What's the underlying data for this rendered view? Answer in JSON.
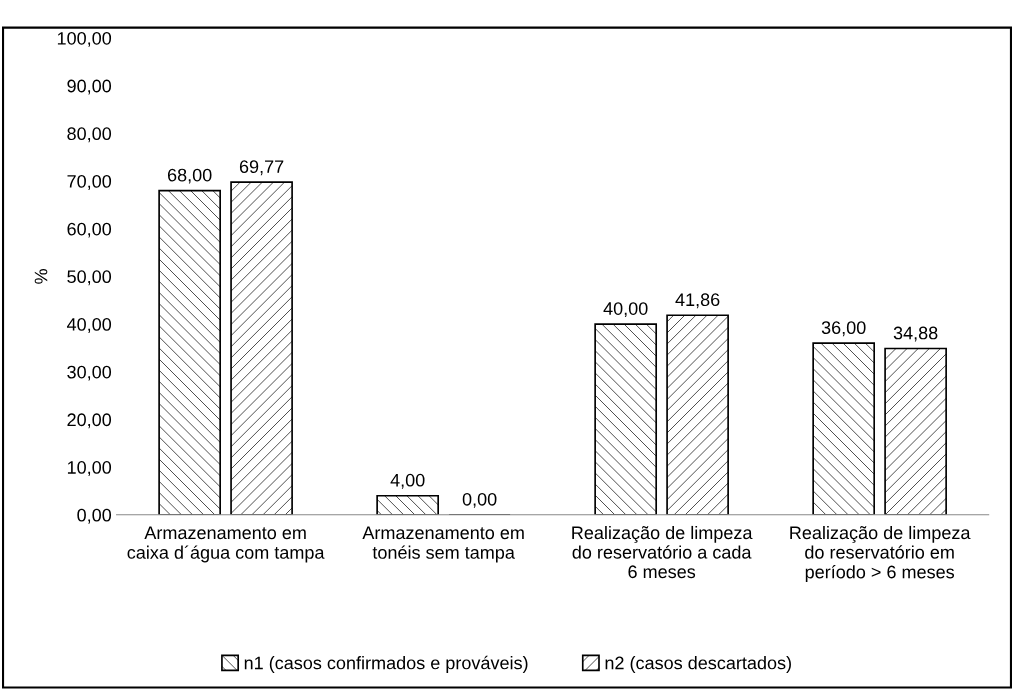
{
  "chart_data": {
    "type": "bar",
    "ylabel": "%",
    "categories": [
      "Armazenamento em\ncaixa d´água com tampa",
      "Armazenamento em\ntonéis sem tampa",
      "Realização de limpeza\ndo reservatório a cada\n6 meses",
      "Realização de limpeza\ndo reservatório em\nperíodo > 6 meses"
    ],
    "series": [
      {
        "name": "n1 (casos confirmados e prováveis)",
        "color": "#000000",
        "values": [
          68.0,
          4.0,
          40.0,
          36.0
        ],
        "value_labels": [
          "68,00",
          "4,00",
          "40,00",
          "36,00"
        ]
      },
      {
        "name": "n2 (casos descartados)",
        "color": "#000000",
        "values": [
          69.77,
          0.0,
          41.86,
          34.88
        ],
        "value_labels": [
          "69,77",
          "0,00",
          "41,86",
          "34,88"
        ]
      }
    ],
    "ylim": [
      0,
      100
    ],
    "yticks": [
      {
        "value": 0,
        "label": "0,00"
      },
      {
        "value": 10,
        "label": "10,00"
      },
      {
        "value": 20,
        "label": "20,00"
      },
      {
        "value": 30,
        "label": "30,00"
      },
      {
        "value": 40,
        "label": "40,00"
      },
      {
        "value": 50,
        "label": "50,00"
      },
      {
        "value": 60,
        "label": "60,00"
      },
      {
        "value": 70,
        "label": "70,00"
      },
      {
        "value": 80,
        "label": "80,00"
      },
      {
        "value": 90,
        "label": "90,00"
      },
      {
        "value": 100,
        "label": "100,00"
      }
    ],
    "grid": false,
    "legend": "bottom"
  }
}
